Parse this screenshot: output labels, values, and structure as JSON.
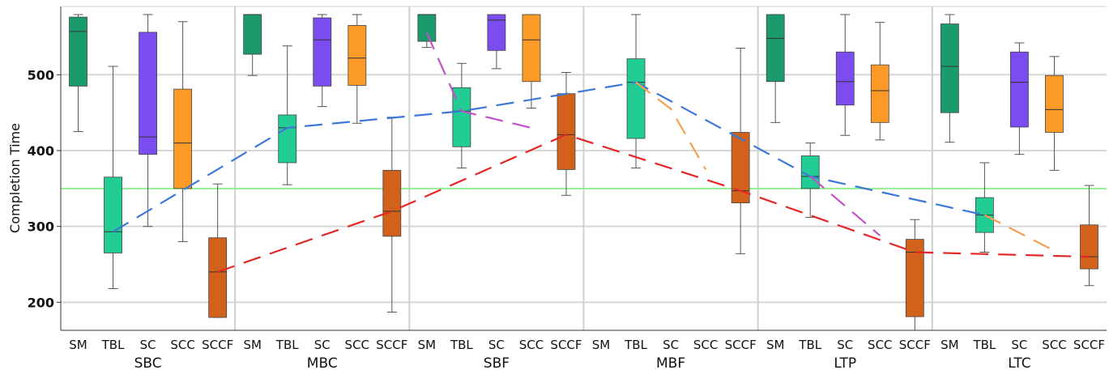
{
  "chart_data": {
    "type": "box",
    "ylabel": "Completion Time",
    "ylim": [
      163,
      590
    ],
    "yticks": [
      200,
      300,
      400,
      500
    ],
    "reference_line": 350,
    "colors": {
      "SM": "#1b9a6c",
      "TBL": "#22cc95",
      "SC": "#7b4cf0",
      "SCC": "#fb9a26",
      "SCCF": "#d2621b",
      "reference": "#90ee90",
      "trend_blue": "#3d78d8",
      "trend_red": "#e32626",
      "trend_purple": "#c052c8",
      "trend_orange": "#f5a050"
    },
    "groups": [
      {
        "name": "SBC",
        "categories": [
          "SM",
          "TBL",
          "SC",
          "SCC",
          "SCCF"
        ],
        "boxes": [
          {
            "cat": "SM",
            "min": 425,
            "q1": 485,
            "median": 557,
            "q3": 576,
            "max": 590
          },
          {
            "cat": "TBL",
            "min": 218,
            "q1": 265,
            "median": 293,
            "q3": 365,
            "max": 511
          },
          {
            "cat": "SC",
            "min": 300,
            "q1": 395,
            "median": 418,
            "q3": 556,
            "max": 590
          },
          {
            "cat": "SCC",
            "min": 280,
            "q1": 350,
            "median": 410,
            "q3": 481,
            "max": 570
          },
          {
            "cat": "SCCF",
            "min": 180,
            "q1": 180,
            "median": 240,
            "q3": 285,
            "max": 356
          }
        ]
      },
      {
        "name": "MBC",
        "categories": [
          "SM",
          "TBL",
          "SC",
          "SCC",
          "SCCF"
        ],
        "boxes": [
          {
            "cat": "SM",
            "min": 499,
            "q1": 527,
            "median": 588,
            "q3": 590,
            "max": 590
          },
          {
            "cat": "TBL",
            "min": 355,
            "q1": 384,
            "median": 430,
            "q3": 447,
            "max": 538
          },
          {
            "cat": "SC",
            "min": 458,
            "q1": 485,
            "median": 546,
            "q3": 575,
            "max": 590
          },
          {
            "cat": "SCC",
            "min": 436,
            "q1": 486,
            "median": 522,
            "q3": 565,
            "max": 590
          },
          {
            "cat": "SCCF",
            "min": 187,
            "q1": 287,
            "median": 320,
            "q3": 374,
            "max": 444
          }
        ]
      },
      {
        "name": "SBF",
        "categories": [
          "SM",
          "TBL",
          "SC",
          "SCC",
          "SCCF"
        ],
        "boxes": [
          {
            "cat": "SM",
            "min": 536,
            "q1": 544,
            "median": 580,
            "q3": 590,
            "max": 590
          },
          {
            "cat": "TBL",
            "min": 377,
            "q1": 405,
            "median": 452,
            "q3": 483,
            "max": 515
          },
          {
            "cat": "SC",
            "min": 508,
            "q1": 532,
            "median": 572,
            "q3": 588,
            "max": 590
          },
          {
            "cat": "SCC",
            "min": 456,
            "q1": 491,
            "median": 546,
            "q3": 584,
            "max": 590
          },
          {
            "cat": "SCCF",
            "min": 341,
            "q1": 375,
            "median": 421,
            "q3": 475,
            "max": 503
          }
        ]
      },
      {
        "name": "MBF",
        "categories": [
          "SM",
          "TBL",
          "SC",
          "SCC",
          "SCCF"
        ],
        "boxes": [
          {
            "cat": "TBL",
            "min": 377,
            "q1": 416,
            "median": 490,
            "q3": 521,
            "max": 582
          },
          {
            "cat": "SCCF",
            "min": 264,
            "q1": 331,
            "median": 347,
            "q3": 424,
            "max": 535
          }
        ]
      },
      {
        "name": "LTP",
        "categories": [
          "SM",
          "TBL",
          "SC",
          "SCC",
          "SCCF"
        ],
        "boxes": [
          {
            "cat": "SM",
            "min": 437,
            "q1": 491,
            "median": 548,
            "q3": 581,
            "max": 590
          },
          {
            "cat": "TBL",
            "min": 312,
            "q1": 350,
            "median": 366,
            "q3": 393,
            "max": 410
          },
          {
            "cat": "SC",
            "min": 420,
            "q1": 460,
            "median": 491,
            "q3": 530,
            "max": 582
          },
          {
            "cat": "SCC",
            "min": 414,
            "q1": 437,
            "median": 479,
            "q3": 513,
            "max": 569
          },
          {
            "cat": "SCCF",
            "min": 163,
            "q1": 181,
            "median": 266,
            "q3": 283,
            "max": 309
          }
        ]
      },
      {
        "name": "LTC",
        "categories": [
          "SM",
          "TBL",
          "SC",
          "SCC",
          "SCCF"
        ],
        "boxes": [
          {
            "cat": "SM",
            "min": 411,
            "q1": 450,
            "median": 511,
            "q3": 567,
            "max": 585
          },
          {
            "cat": "TBL",
            "min": 266,
            "q1": 292,
            "median": 315,
            "q3": 338,
            "max": 384
          },
          {
            "cat": "SC",
            "min": 395,
            "q1": 431,
            "median": 490,
            "q3": 530,
            "max": 542
          },
          {
            "cat": "SCC",
            "min": 374,
            "q1": 424,
            "median": 454,
            "q3": 499,
            "max": 524
          },
          {
            "cat": "SCCF",
            "min": 222,
            "q1": 244,
            "median": 260,
            "q3": 302,
            "max": 354
          }
        ]
      }
    ],
    "trend_lines": [
      {
        "color_key": "trend_blue",
        "points": [
          [
            "SBC",
            "TBL",
            293
          ],
          [
            "MBC",
            "TBL",
            430
          ],
          [
            "SBF",
            "TBL",
            452
          ],
          [
            "MBF",
            "TBL",
            490
          ],
          [
            "LTP",
            "TBL",
            366
          ],
          [
            "LTC",
            "TBL",
            315
          ]
        ]
      },
      {
        "color_key": "trend_red",
        "points": [
          [
            "SBC",
            "SCCF",
            240
          ],
          [
            "MBC",
            "SCCF",
            320
          ],
          [
            "SBF",
            "SCCF",
            421
          ],
          [
            "MBF",
            "SCCF",
            347
          ],
          [
            "LTP",
            "SCCF",
            266
          ],
          [
            "LTC",
            "SCCF",
            260
          ]
        ]
      },
      {
        "color_key": "trend_purple",
        "points": [
          [
            "SBF",
            "SM",
            555
          ],
          [
            "SBF",
            "TBL",
            452
          ],
          [
            "SBF",
            "SCC",
            430
          ]
        ]
      },
      {
        "color_key": "trend_purple",
        "points": [
          [
            "LTP",
            "TBL",
            366
          ],
          [
            "LTP",
            "SCC",
            288
          ]
        ]
      },
      {
        "color_key": "trend_orange",
        "points": [
          [
            "MBF",
            "TBL",
            490
          ],
          [
            "MBF",
            "SC",
            455
          ],
          [
            "MBF",
            "SCC",
            375
          ]
        ]
      },
      {
        "color_key": "trend_orange",
        "points": [
          [
            "LTC",
            "TBL",
            315
          ],
          [
            "LTC",
            "SCC",
            268
          ]
        ]
      }
    ]
  }
}
